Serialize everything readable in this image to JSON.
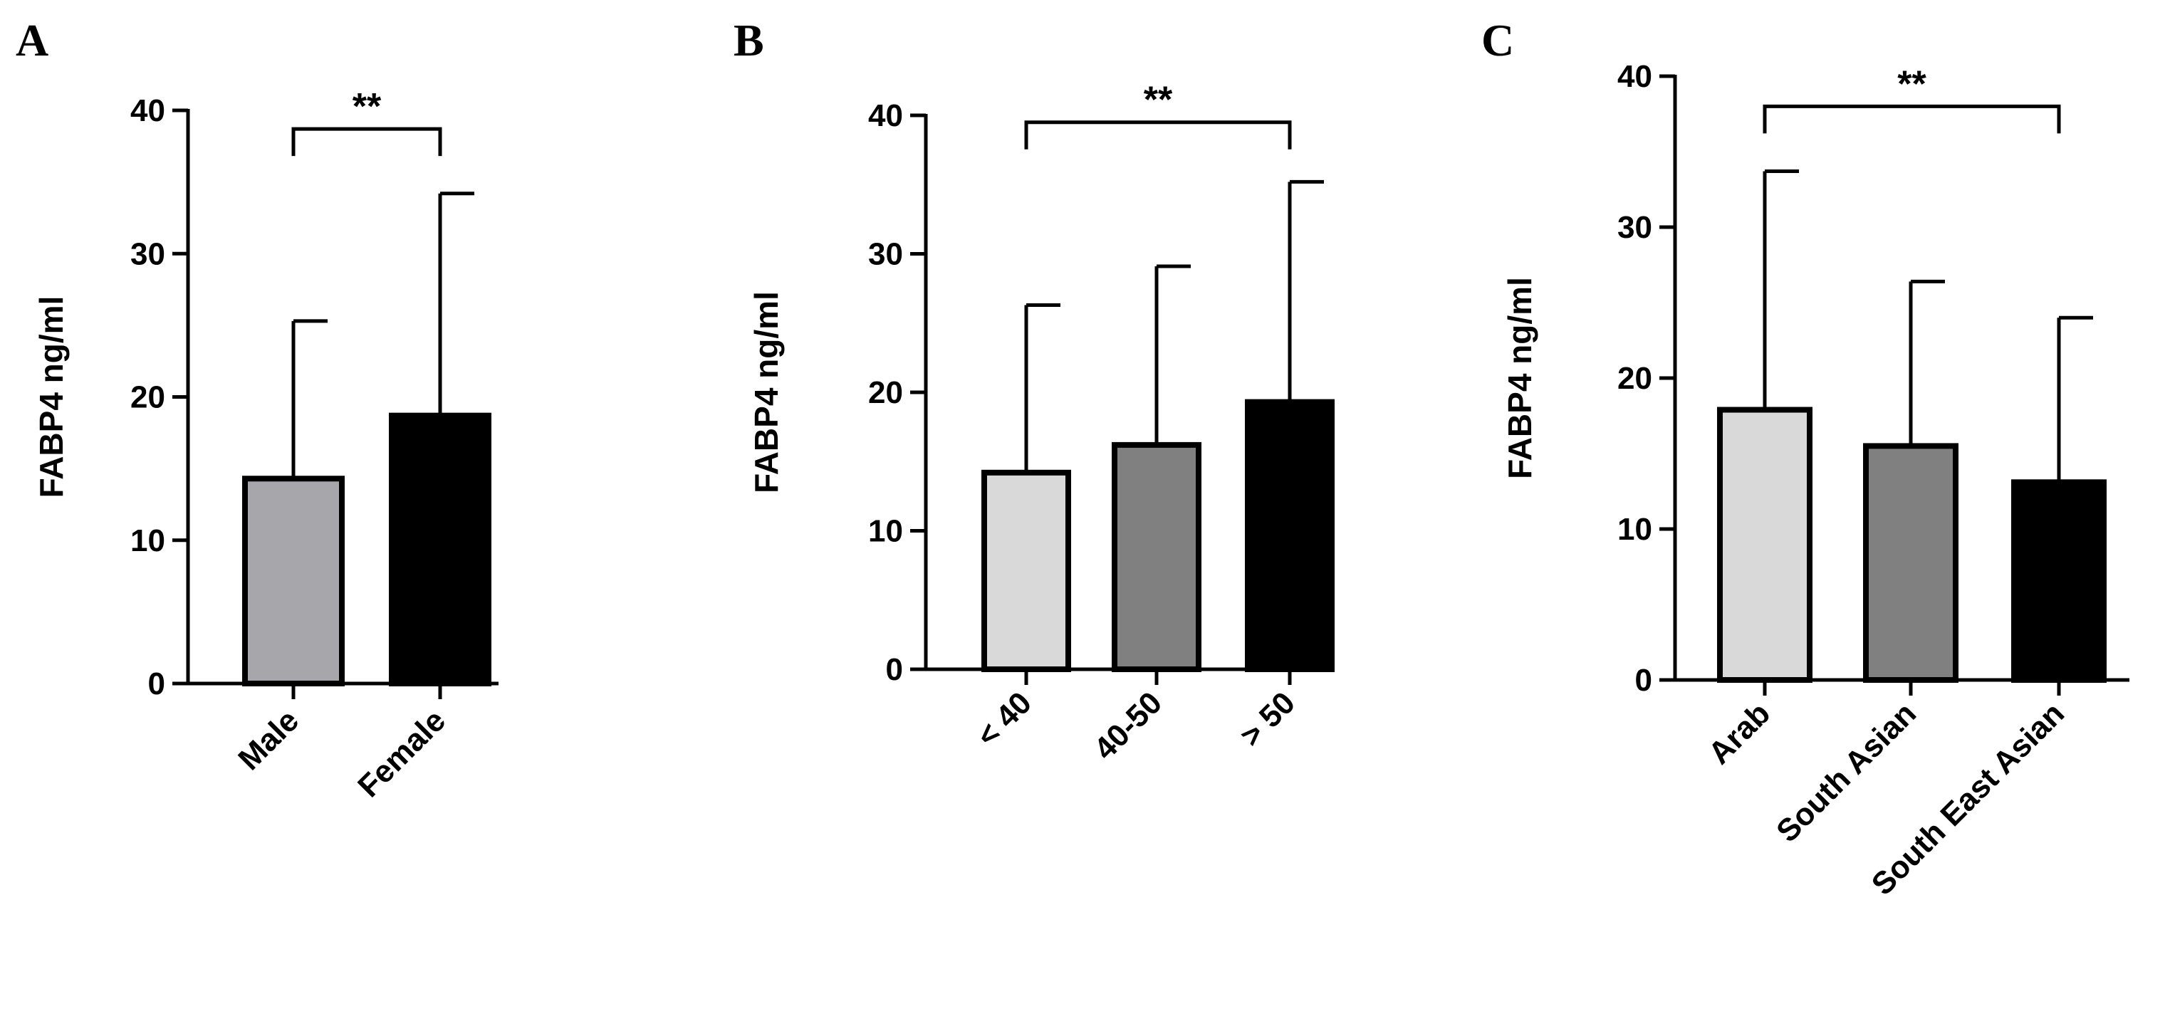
{
  "chart_data": [
    {
      "panel": "A",
      "type": "bar",
      "ylabel": "FABP4 ng/ml",
      "ylim": [
        0,
        40
      ],
      "yticks": [
        "0",
        "10",
        "20",
        "30",
        "40"
      ],
      "categories": [
        "Male",
        "Female"
      ],
      "values": [
        14.3,
        18.7
      ],
      "error_upper": [
        25.3,
        34.2
      ],
      "colors": [
        "#a6a6ab",
        "#000000"
      ],
      "significance": {
        "label": "**",
        "from": 0,
        "to": 1,
        "y": 38.7
      }
    },
    {
      "panel": "B",
      "type": "bar",
      "ylabel": "FABP4 ng/ml",
      "ylim": [
        0,
        40
      ],
      "yticks": [
        "0",
        "10",
        "20",
        "30",
        "40"
      ],
      "categories": [
        "< 40",
        "40-50",
        "> 50"
      ],
      "values": [
        14.2,
        16.2,
        19.3
      ],
      "error_upper": [
        26.3,
        29.1,
        35.2
      ],
      "colors": [
        "#d9d9d9",
        "#808080",
        "#000000"
      ],
      "significance": {
        "label": "**",
        "from": 0,
        "to": 2,
        "y": 39.5
      }
    },
    {
      "panel": "C",
      "type": "bar",
      "ylabel": "FABP4 ng/ml",
      "ylim": [
        0,
        40
      ],
      "yticks": [
        "0",
        "10",
        "20",
        "30",
        "40"
      ],
      "categories": [
        "Arab",
        "South Asian",
        "South East Asian"
      ],
      "values": [
        17.9,
        15.5,
        13.1
      ],
      "error_upper": [
        33.7,
        26.4,
        24.0
      ],
      "colors": [
        "#d9d9d9",
        "#808080",
        "#000000"
      ],
      "significance": {
        "label": "**",
        "from": 0,
        "to": 2,
        "y": 38.0
      }
    }
  ]
}
